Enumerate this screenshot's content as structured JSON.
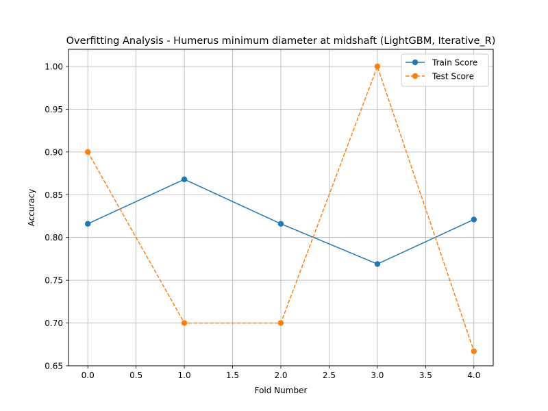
{
  "chart_data": {
    "type": "line",
    "title": "Overfitting Analysis - Humerus minimum diameter at midshaft (LightGBM, Iterative_R)",
    "xlabel": "Fold Number",
    "ylabel": "Accuracy",
    "x": [
      0,
      1,
      2,
      3,
      4
    ],
    "xlim": [
      -0.2,
      4.2
    ],
    "ylim": [
      0.65,
      1.02
    ],
    "xticks": [
      0.0,
      0.5,
      1.0,
      1.5,
      2.0,
      2.5,
      3.0,
      3.5,
      4.0
    ],
    "xtick_labels": [
      "0.0",
      "0.5",
      "1.0",
      "1.5",
      "2.0",
      "2.5",
      "3.0",
      "3.5",
      "4.0"
    ],
    "yticks": [
      0.65,
      0.7,
      0.75,
      0.8,
      0.85,
      0.9,
      0.95,
      1.0
    ],
    "ytick_labels": [
      "0.65",
      "0.70",
      "0.75",
      "0.80",
      "0.85",
      "0.90",
      "0.95",
      "1.00"
    ],
    "grid": true,
    "legend_position": "top-right",
    "series": [
      {
        "name": "Train Score",
        "values": [
          0.816,
          0.868,
          0.816,
          0.769,
          0.821
        ],
        "color": "#1f77b4",
        "line_style": "solid",
        "marker": "circle"
      },
      {
        "name": "Test Score",
        "values": [
          0.9,
          0.7,
          0.7,
          1.0,
          0.667
        ],
        "color": "#ff7f0e",
        "line_style": "dashed",
        "marker": "circle"
      }
    ]
  }
}
